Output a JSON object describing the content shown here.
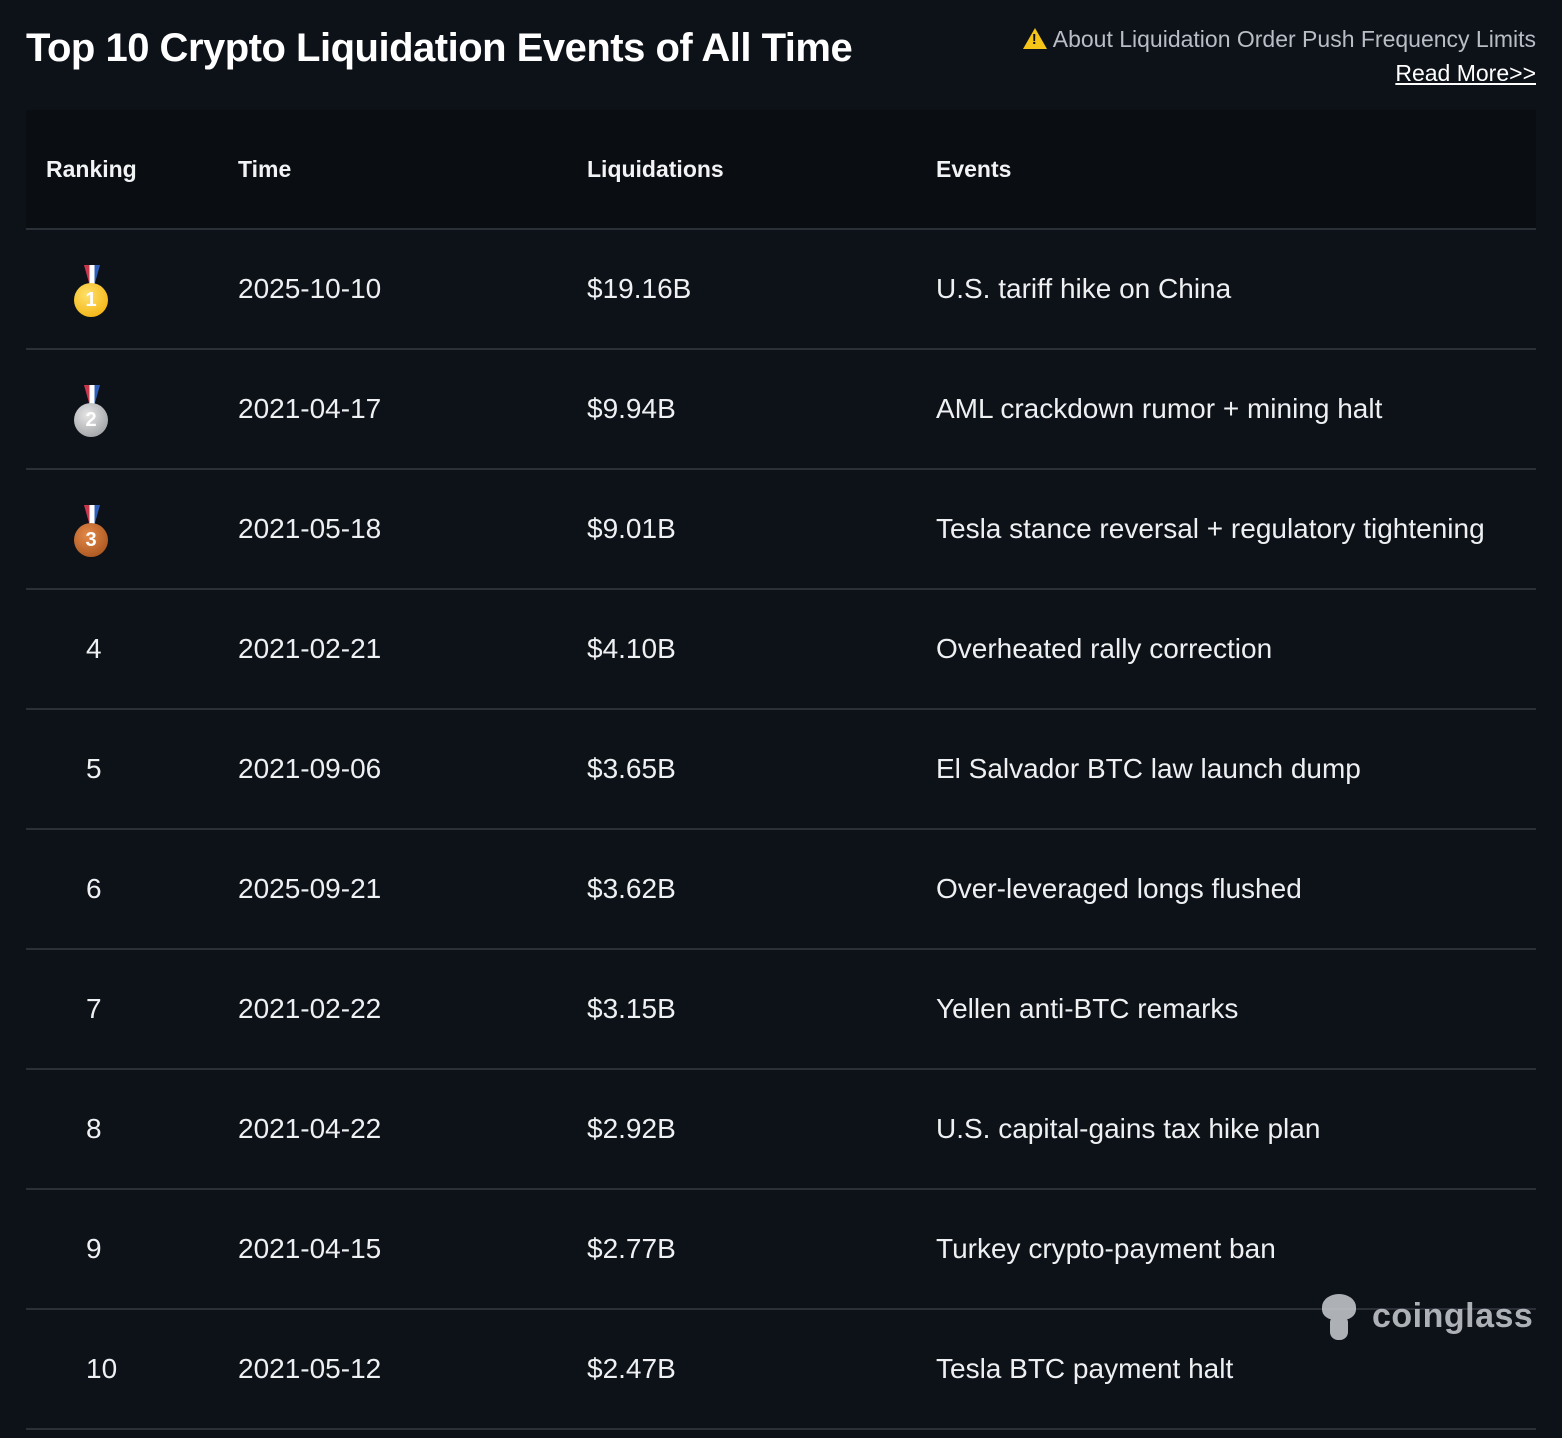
{
  "header": {
    "title": "Top 10 Crypto Liquidation Events of All Time",
    "notice_text": "About Liquidation Order Push Frequency Limits",
    "read_more_label": "Read More>>"
  },
  "table": {
    "columns": [
      "Ranking",
      "Time",
      "Liquidations",
      "Events"
    ],
    "rows": [
      {
        "rank": "1",
        "medal": "gold-medal",
        "time": "2025-10-10",
        "liquidations": "$19.16B",
        "event": "U.S. tariff hike on China"
      },
      {
        "rank": "2",
        "medal": "silver-medal",
        "time": "2021-04-17",
        "liquidations": "$9.94B",
        "event": "AML crackdown rumor + mining halt"
      },
      {
        "rank": "3",
        "medal": "bronze-medal",
        "time": "2021-05-18",
        "liquidations": "$9.01B",
        "event": "Tesla stance reversal + regulatory tightening"
      },
      {
        "rank": "4",
        "time": "2021-02-21",
        "liquidations": "$4.10B",
        "event": "Overheated rally correction"
      },
      {
        "rank": "5",
        "time": "2021-09-06",
        "liquidations": "$3.65B",
        "event": "El Salvador BTC law launch dump"
      },
      {
        "rank": "6",
        "time": "2025-09-21",
        "liquidations": "$3.62B",
        "event": "Over-leveraged longs flushed"
      },
      {
        "rank": "7",
        "time": "2021-02-22",
        "liquidations": "$3.15B",
        "event": "Yellen anti-BTC remarks"
      },
      {
        "rank": "8",
        "time": "2021-04-22",
        "liquidations": "$2.92B",
        "event": "U.S. capital-gains tax hike plan"
      },
      {
        "rank": "9",
        "time": "2021-04-15",
        "liquidations": "$2.77B",
        "event": "Turkey crypto-payment ban"
      },
      {
        "rank": "10",
        "time": "2021-05-12",
        "liquidations": "$2.47B",
        "event": "Tesla BTC payment halt"
      }
    ]
  },
  "watermark": {
    "brand": "coinglass"
  },
  "colors": {
    "background": "#0d1118",
    "header_row": "#0a0d12",
    "divider": "#2a2f38",
    "warning": "#f5c518"
  }
}
